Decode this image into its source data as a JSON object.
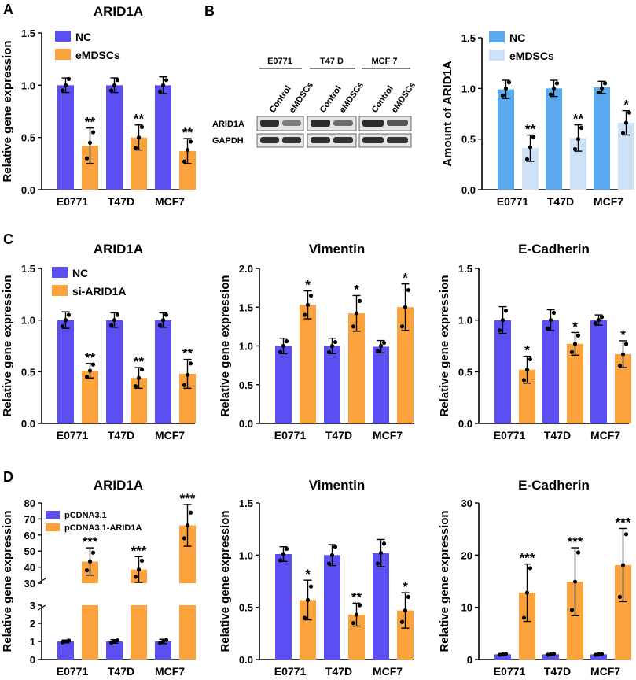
{
  "figure": {
    "colors": {
      "nc": "#5b4ff2",
      "treat": "#fba23d",
      "nc_b": "#5aa8ee",
      "treat_b": "#cde1f7",
      "axis": "#000000"
    },
    "panel_labels": {
      "A": "A",
      "B": "B",
      "C": "C",
      "D": "D"
    },
    "blot": {
      "cell_lines": [
        "E0771",
        "T47 D",
        "MCF 7"
      ],
      "lanes": [
        "Control",
        "eMDSCs"
      ],
      "rows": [
        "ARID1A",
        "GAPDH"
      ]
    }
  },
  "chart_data": [
    {
      "id": "A",
      "type": "bar",
      "title": "ARID1A",
      "xlabel": "",
      "ylabel": "Relative gene expression",
      "categories": [
        "E0771",
        "T47D",
        "MCF7"
      ],
      "ylim": [
        0,
        1.5
      ],
      "yticks": [
        0,
        0.5,
        1.0,
        1.5
      ],
      "ytick_labels": [
        "0.0",
        "0.5",
        "1.0",
        "1.5"
      ],
      "series": [
        {
          "name": "NC",
          "values": [
            1.0,
            1.0,
            1.0
          ],
          "errors": [
            0.07,
            0.07,
            0.08
          ],
          "points": [
            [
              0.95,
              1.0,
              1.06
            ],
            [
              0.95,
              1.0,
              1.05
            ],
            [
              0.94,
              1.0,
              1.05
            ]
          ]
        },
        {
          "name": "eMDSCs",
          "values": [
            0.42,
            0.5,
            0.37
          ],
          "errors": [
            0.17,
            0.12,
            0.12
          ],
          "points": [
            [
              0.3,
              0.45,
              0.55
            ],
            [
              0.4,
              0.5,
              0.6
            ],
            [
              0.27,
              0.38,
              0.46
            ]
          ]
        }
      ],
      "significance": [
        "**",
        "**",
        "**"
      ],
      "legend": "top-left"
    },
    {
      "id": "B",
      "type": "bar",
      "title": "",
      "xlabel": "",
      "ylabel": "Amount of ARID1A",
      "categories": [
        "E0771",
        "T47D",
        "MCF7"
      ],
      "ylim": [
        0,
        1.5
      ],
      "yticks": [
        0,
        0.5,
        1.0,
        1.5
      ],
      "ytick_labels": [
        "0.0",
        "0.5",
        "1.0",
        "1.5"
      ],
      "series": [
        {
          "name": "NC",
          "values": [
            0.99,
            1.0,
            1.01
          ],
          "errors": [
            0.09,
            0.08,
            0.06
          ],
          "points": [
            [
              0.93,
              1.0,
              1.06
            ],
            [
              0.94,
              1.0,
              1.05
            ],
            [
              0.96,
              1.0,
              1.05
            ]
          ]
        },
        {
          "name": "eMDSCs",
          "values": [
            0.41,
            0.51,
            0.66
          ],
          "errors": [
            0.13,
            0.13,
            0.12
          ],
          "points": [
            [
              0.3,
              0.42,
              0.52
            ],
            [
              0.4,
              0.5,
              0.61
            ],
            [
              0.56,
              0.66,
              0.76
            ]
          ]
        }
      ],
      "significance": [
        "**",
        "**",
        "*"
      ],
      "legend": "top-left"
    },
    {
      "id": "C1",
      "type": "bar",
      "title": "ARID1A",
      "xlabel": "",
      "ylabel": "Relative gene expression",
      "categories": [
        "E0771",
        "T47D",
        "MCF7"
      ],
      "ylim": [
        0,
        1.5
      ],
      "yticks": [
        0,
        0.5,
        1.0,
        1.5
      ],
      "ytick_labels": [
        "0.0",
        "0.5",
        "1.0",
        "1.5"
      ],
      "series": [
        {
          "name": "NC",
          "values": [
            1.0,
            1.0,
            1.0
          ],
          "errors": [
            0.08,
            0.07,
            0.07
          ],
          "points": [
            [
              0.94,
              1.0,
              1.05
            ],
            [
              0.95,
              1.0,
              1.05
            ],
            [
              0.95,
              1.0,
              1.05
            ]
          ]
        },
        {
          "name": "si-ARID1A",
          "values": [
            0.51,
            0.44,
            0.48
          ],
          "errors": [
            0.07,
            0.1,
            0.14
          ],
          "points": [
            [
              0.45,
              0.51,
              0.57
            ],
            [
              0.36,
              0.44,
              0.52
            ],
            [
              0.37,
              0.47,
              0.58
            ]
          ]
        }
      ],
      "significance": [
        "**",
        "**",
        "**"
      ],
      "legend": "top-left"
    },
    {
      "id": "C2",
      "type": "bar",
      "title": "Vimentin",
      "xlabel": "",
      "ylabel": "Relative gene expression",
      "categories": [
        "E0771",
        "T47D",
        "MCF7"
      ],
      "ylim": [
        0,
        2.0
      ],
      "yticks": [
        0,
        0.5,
        1.0,
        1.5,
        2.0
      ],
      "ytick_labels": [
        "0.0",
        "0.5",
        "1.0",
        "1.5",
        "2.0"
      ],
      "series": [
        {
          "name": "NC",
          "values": [
            1.0,
            1.0,
            0.99
          ],
          "errors": [
            0.1,
            0.1,
            0.08
          ],
          "points": [
            [
              0.92,
              1.0,
              1.06
            ],
            [
              0.92,
              1.0,
              1.05
            ],
            [
              0.93,
              1.0,
              1.04
            ]
          ]
        },
        {
          "name": "si-ARID1A",
          "values": [
            1.53,
            1.42,
            1.5
          ],
          "errors": [
            0.18,
            0.23,
            0.3
          ],
          "points": [
            [
              1.4,
              1.53,
              1.65
            ],
            [
              1.25,
              1.42,
              1.58
            ],
            [
              1.25,
              1.5,
              1.72
            ]
          ]
        }
      ],
      "significance": [
        "*",
        "*",
        "*"
      ],
      "legend": "none"
    },
    {
      "id": "C3",
      "type": "bar",
      "title": "E-Cadherin",
      "xlabel": "",
      "ylabel": "Relative gene expression",
      "categories": [
        "E0771",
        "T47D",
        "MCF7"
      ],
      "ylim": [
        0,
        1.5
      ],
      "yticks": [
        0,
        0.5,
        1.0,
        1.5
      ],
      "ytick_labels": [
        "0.0",
        "0.5",
        "1.0",
        "1.5"
      ],
      "series": [
        {
          "name": "NC",
          "values": [
            1.0,
            1.0,
            1.0
          ],
          "errors": [
            0.13,
            0.1,
            0.05
          ],
          "points": [
            [
              0.9,
              1.0,
              1.09
            ],
            [
              0.92,
              1.0,
              1.07
            ],
            [
              0.97,
              1.0,
              1.03
            ]
          ]
        },
        {
          "name": "si-ARID1A",
          "values": [
            0.52,
            0.77,
            0.67
          ],
          "errors": [
            0.13,
            0.11,
            0.13
          ],
          "points": [
            [
              0.42,
              0.52,
              0.62
            ],
            [
              0.69,
              0.77,
              0.85
            ],
            [
              0.56,
              0.67,
              0.77
            ]
          ]
        }
      ],
      "significance": [
        "*",
        "*",
        "*"
      ],
      "legend": "none"
    },
    {
      "id": "D1",
      "type": "bar",
      "title": "ARID1A",
      "xlabel": "",
      "ylabel": "Relative gene expression",
      "categories": [
        "E0771",
        "T47D",
        "MCF7"
      ],
      "broken_axis": true,
      "ylim_lower": [
        0,
        3
      ],
      "ylim_upper": [
        30,
        80
      ],
      "yticks_lower": [
        0,
        1,
        2,
        3
      ],
      "ytick_labels_lower": [
        "0",
        "1",
        "2",
        "3"
      ],
      "yticks_upper": [
        30,
        40,
        50,
        60,
        70,
        80
      ],
      "ytick_labels_upper": [
        "30",
        "40",
        "50",
        "60",
        "70",
        "80"
      ],
      "series": [
        {
          "name": "pCDNA3.1",
          "values": [
            1.0,
            1.0,
            1.0
          ],
          "errors": [
            0.08,
            0.1,
            0.12
          ],
          "points": [
            [
              0.95,
              1.0,
              1.05
            ],
            [
              0.93,
              1.0,
              1.06
            ],
            [
              0.92,
              1.0,
              1.08
            ]
          ]
        },
        {
          "name": "pCDNA3.1-ARID1A",
          "values": [
            43.5,
            38.5,
            66.0
          ],
          "errors": [
            8.5,
            8.0,
            13.0
          ],
          "points": [
            [
              38,
              43.5,
              49
            ],
            [
              34,
              38.5,
              44
            ],
            [
              58,
              66,
              74
            ]
          ]
        }
      ],
      "significance": [
        "***",
        "***",
        "***"
      ],
      "legend": "top-left"
    },
    {
      "id": "D2",
      "type": "bar",
      "title": "Vimentin",
      "xlabel": "",
      "ylabel": "Relative gene expression",
      "categories": [
        "E0771",
        "T47D",
        "MCF7"
      ],
      "ylim": [
        0,
        1.5
      ],
      "yticks": [
        0,
        0.5,
        1.0,
        1.5
      ],
      "ytick_labels": [
        "0.0",
        "0.5",
        "1.0",
        "1.5"
      ],
      "series": [
        {
          "name": "pCDNA3.1",
          "values": [
            1.01,
            1.0,
            1.02
          ],
          "errors": [
            0.07,
            0.1,
            0.13
          ],
          "points": [
            [
              0.95,
              1.01,
              1.06
            ],
            [
              0.92,
              1.0,
              1.08
            ],
            [
              0.92,
              1.02,
              1.11
            ]
          ]
        },
        {
          "name": "pCDNA3.1-ARID1A",
          "values": [
            0.57,
            0.43,
            0.47
          ],
          "errors": [
            0.19,
            0.11,
            0.17
          ],
          "points": [
            [
              0.4,
              0.57,
              0.7
            ],
            [
              0.35,
              0.43,
              0.52
            ],
            [
              0.36,
              0.47,
              0.6
            ]
          ]
        }
      ],
      "significance": [
        "*",
        "**",
        "*"
      ],
      "legend": "none"
    },
    {
      "id": "D3",
      "type": "bar",
      "title": "E-Cadherin",
      "xlabel": "",
      "ylabel": "Relative gene expression",
      "categories": [
        "E0771",
        "T47D",
        "MCF7"
      ],
      "ylim": [
        0,
        30
      ],
      "yticks": [
        0,
        10,
        20,
        30
      ],
      "ytick_labels": [
        "0",
        "10",
        "20",
        "30"
      ],
      "series": [
        {
          "name": "pCDNA3.1",
          "values": [
            1.0,
            1.0,
            1.0
          ],
          "errors": [
            0.15,
            0.15,
            0.15
          ],
          "points": [
            [
              0.9,
              1.0,
              1.1
            ],
            [
              0.9,
              1.0,
              1.1
            ],
            [
              0.9,
              1.0,
              1.1
            ]
          ]
        },
        {
          "name": "pCDNA3.1-ARID1A",
          "values": [
            12.8,
            14.9,
            18.1
          ],
          "errors": [
            5.5,
            6.5,
            7.0
          ],
          "points": [
            [
              8.0,
              12.8,
              17.5
            ],
            [
              9.5,
              14.9,
              20.5
            ],
            [
              12.0,
              18.1,
              24.0
            ]
          ]
        }
      ],
      "significance": [
        "***",
        "***",
        "***"
      ],
      "legend": "none"
    }
  ]
}
